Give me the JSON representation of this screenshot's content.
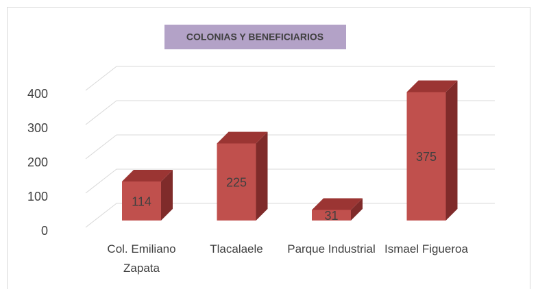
{
  "chart_data": {
    "type": "bar3d",
    "title": "COLONIAS Y BENEFICIARIOS",
    "categories": [
      "Col. Emiliano Zapata",
      "Tlacalaele",
      "Parque Industrial",
      "Ismael Figueroa"
    ],
    "values": [
      114,
      225,
      31,
      375
    ],
    "color": "#c0504d",
    "ylim": [
      0,
      400
    ],
    "yticks": [
      0,
      100,
      200,
      300,
      400
    ],
    "grid": true
  }
}
